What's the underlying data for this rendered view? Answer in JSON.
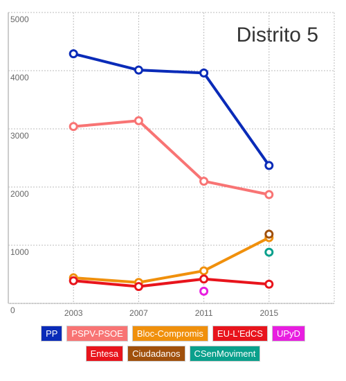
{
  "chart_data": {
    "type": "line",
    "title": "Distrito 5",
    "x": [
      2003,
      2007,
      2011,
      2015
    ],
    "xlim": [
      1999,
      2019
    ],
    "xticks": [
      2003,
      2007,
      2011,
      2015
    ],
    "ylim": [
      0,
      5000
    ],
    "yticks": [
      0,
      1000,
      2000,
      3000,
      4000,
      5000
    ],
    "grid": true,
    "series": [
      {
        "name": "PP",
        "color": "#0a2bb8",
        "values": [
          4290,
          4010,
          3960,
          2370
        ]
      },
      {
        "name": "PSPV-PSOE",
        "color": "#f87474",
        "values": [
          3040,
          3140,
          2100,
          1870
        ]
      },
      {
        "name": "Bloc-Compromis",
        "color": "#f0900c",
        "values": [
          440,
          360,
          560,
          1130
        ]
      },
      {
        "name": "EU-L'EdCS",
        "color": "#e8141c",
        "values": [
          390,
          290,
          420,
          330
        ]
      },
      {
        "name": "UPyD",
        "color": "#e81ee0",
        "values": [
          null,
          null,
          210,
          null
        ]
      },
      {
        "name": "Entesa",
        "color": "#e8141c",
        "values": [
          null,
          null,
          null,
          null
        ]
      },
      {
        "name": "Ciudadanos",
        "color": "#a0500c",
        "values": [
          null,
          null,
          null,
          1190
        ]
      },
      {
        "name": "CSenMoviment",
        "color": "#0aa08c",
        "values": [
          null,
          null,
          null,
          880
        ]
      }
    ]
  }
}
